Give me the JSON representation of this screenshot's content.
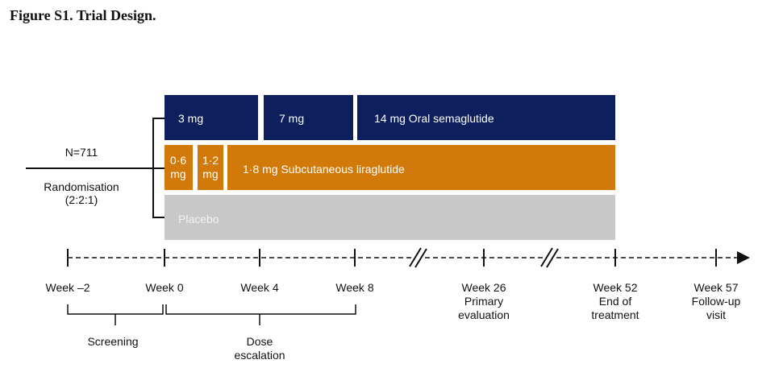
{
  "title": "Figure S1. Trial Design.",
  "colors": {
    "semaglutide": "#0d1f5c",
    "liraglutide": "#d17a0a",
    "placebo": "#c8c8c8"
  },
  "randomisation": {
    "n": "N=711",
    "label": "Randomisation",
    "ratio": "(2:2:1)"
  },
  "arms": {
    "semaglutide": [
      "3 mg",
      "7 mg",
      "14 mg Oral semaglutide"
    ],
    "liraglutide": [
      [
        "0·6",
        "mg"
      ],
      [
        "1·2",
        "mg"
      ],
      "1·8 mg Subcutaneous liraglutide"
    ],
    "placebo": "Placebo"
  },
  "timeline": [
    {
      "lines": [
        "Week –2"
      ]
    },
    {
      "lines": [
        "Week 0"
      ]
    },
    {
      "lines": [
        "Week 4"
      ]
    },
    {
      "lines": [
        "Week 8"
      ]
    },
    {
      "lines": [
        "Week 26",
        "Primary",
        "evaluation"
      ]
    },
    {
      "lines": [
        "Week 52",
        "End of",
        "treatment"
      ]
    },
    {
      "lines": [
        "Week 57",
        "Follow-up",
        "visit"
      ]
    }
  ],
  "phases": {
    "screening": "Screening",
    "dose_escalation": [
      "Dose",
      "escalation"
    ]
  }
}
